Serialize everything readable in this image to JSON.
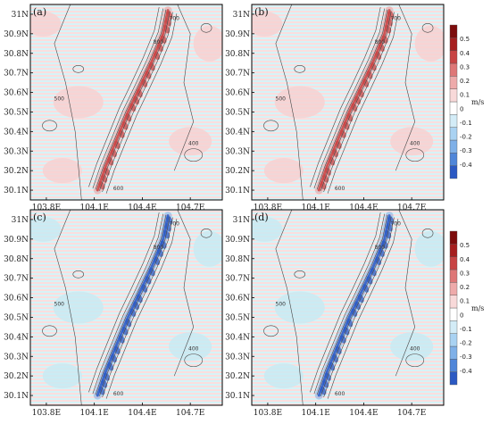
{
  "chart_data": [
    {
      "type": "heatmap",
      "panel_label": "(a)",
      "lon_ticks": [
        "103.8E",
        "104.1E",
        "104.4E",
        "104.7E"
      ],
      "lat_ticks": [
        "31N",
        "30.9N",
        "30.8N",
        "30.7N",
        "30.6N",
        "30.5N",
        "30.4N",
        "30.3N",
        "30.2N",
        "30.1N"
      ],
      "xlim": [
        103.7,
        104.9
      ],
      "ylim": [
        30.05,
        31.05
      ],
      "field_sign": "positive",
      "contour_levels": [
        "500",
        "600",
        "700",
        "800",
        "400"
      ],
      "colorbar": true
    },
    {
      "type": "heatmap",
      "panel_label": "(b)",
      "lon_ticks": [
        "103.8E",
        "104.1E",
        "104.4E",
        "104.7E"
      ],
      "lat_ticks": [
        "31N",
        "30.9N",
        "30.8N",
        "30.7N",
        "30.6N",
        "30.5N",
        "30.4N",
        "30.3N",
        "30.2N",
        "30.1N"
      ],
      "xlim": [
        103.7,
        104.9
      ],
      "ylim": [
        30.05,
        31.05
      ],
      "field_sign": "positive",
      "contour_levels": [
        "500",
        "600",
        "700",
        "800",
        "400"
      ],
      "colorbar": false
    },
    {
      "type": "heatmap",
      "panel_label": "(c)",
      "lon_ticks": [
        "103.8E",
        "104.1E",
        "104.4E",
        "104.7E"
      ],
      "lat_ticks": [
        "31N",
        "30.9N",
        "30.8N",
        "30.7N",
        "30.6N",
        "30.5N",
        "30.4N",
        "30.3N",
        "30.2N",
        "30.1N"
      ],
      "xlim": [
        103.7,
        104.9
      ],
      "ylim": [
        30.05,
        31.05
      ],
      "field_sign": "negative",
      "contour_levels": [
        "500",
        "600",
        "700",
        "800",
        "400"
      ],
      "colorbar": false
    },
    {
      "type": "heatmap",
      "panel_label": "(d)",
      "lon_ticks": [
        "103.8E",
        "104.1E",
        "104.4E",
        "104.7E"
      ],
      "lat_ticks": [
        "31N",
        "30.9N",
        "30.8N",
        "30.7N",
        "30.6N",
        "30.5N",
        "30.4N",
        "30.3N",
        "30.2N",
        "30.1N"
      ],
      "xlim": [
        103.7,
        104.9
      ],
      "ylim": [
        30.05,
        31.05
      ],
      "field_sign": "negative",
      "contour_levels": [
        "500",
        "600",
        "700",
        "800",
        "400"
      ],
      "colorbar": true
    }
  ],
  "colorbar": {
    "unit": "m/s",
    "ticks": [
      "0.5",
      "0.4",
      "0.3",
      "0.2",
      "0.1",
      "0",
      "-0.1",
      "-0.2",
      "-0.3",
      "-0.4"
    ],
    "vmin": -0.5,
    "vmax": 0.6,
    "colors": [
      "#2b59c3",
      "#4f86d9",
      "#7fb0e8",
      "#a9d2f2",
      "#d3ecf7",
      "#ffffff",
      "#f8d9d9",
      "#eeaaaa",
      "#de7777",
      "#c84444",
      "#a61e1e",
      "#7d0c0c"
    ]
  }
}
